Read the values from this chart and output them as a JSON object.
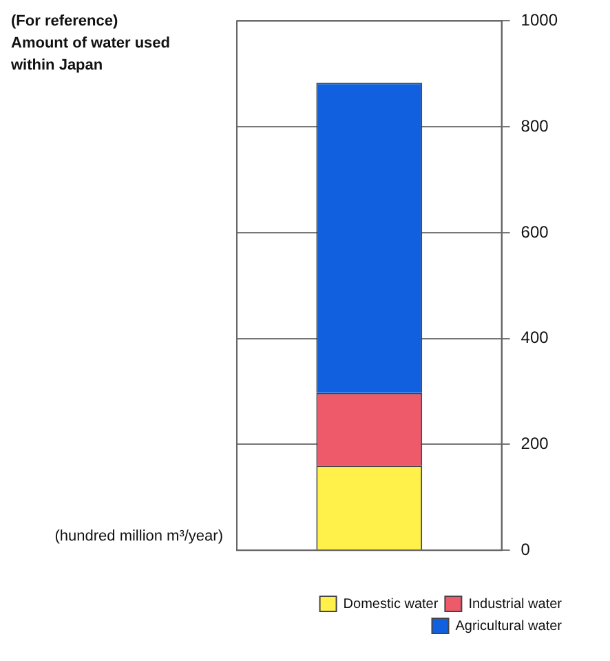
{
  "chart_data": {
    "type": "bar",
    "title": "(For reference)\nAmount of water used\nwithin Japan",
    "ylabel": "(hundred million m³/year)",
    "categories": [
      null
    ],
    "stacked": true,
    "series": [
      {
        "name": "Domestic water",
        "color": "#fff04a",
        "values": [
          160
        ]
      },
      {
        "name": "Industrial water",
        "color": "#ee5a6a",
        "values": [
          137
        ]
      },
      {
        "name": "Agricultural water",
        "color": "#1060e0",
        "values": [
          586
        ]
      }
    ],
    "ylim": [
      0,
      1000
    ],
    "yticks": [
      0,
      200,
      400,
      600,
      800,
      1000
    ],
    "grid": "y",
    "legend": "bottom right"
  }
}
